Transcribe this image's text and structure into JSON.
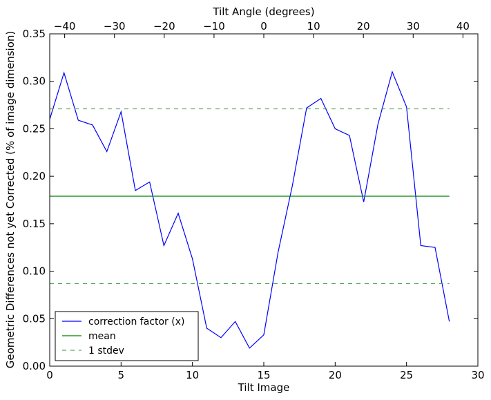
{
  "chart_data": {
    "type": "line",
    "title": "",
    "xlabel": "Tilt Image",
    "ylabel": "Geometric Differences not yet Corrected (% of image dimension)",
    "x2label": "Tilt Angle (degrees)",
    "xlim": [
      0,
      30
    ],
    "ylim": [
      0,
      0.35
    ],
    "x2lim": [
      -43,
      43
    ],
    "x_ticks": [
      0,
      5,
      10,
      15,
      20,
      25,
      30
    ],
    "x_tick_labels": [
      "0",
      "5",
      "10",
      "15",
      "20",
      "25",
      "30"
    ],
    "y_ticks": [
      0,
      0.05,
      0.1,
      0.15,
      0.2,
      0.25,
      0.3,
      0.35
    ],
    "y_tick_labels": [
      "0.00",
      "0.05",
      "0.10",
      "0.15",
      "0.20",
      "0.25",
      "0.30",
      "0.35"
    ],
    "x2_ticks": [
      -40,
      -30,
      -20,
      -10,
      0,
      10,
      20,
      30,
      40
    ],
    "x2_tick_labels": [
      "−40",
      "−30",
      "−20",
      "−10",
      "0",
      "10",
      "20",
      "30",
      "40"
    ],
    "grid": false,
    "legend_position": "lower-left",
    "series": [
      {
        "name": "correction factor (x)",
        "color": "#0000ff",
        "style": "solid",
        "x": [
          0,
          1,
          2,
          3,
          4,
          5,
          6,
          7,
          8,
          9,
          10,
          11,
          12,
          13,
          14,
          15,
          16,
          17,
          18,
          19,
          20,
          21,
          22,
          23,
          24,
          25,
          26,
          27,
          28
        ],
        "y": [
          0.26,
          0.309,
          0.259,
          0.254,
          0.226,
          0.268,
          0.185,
          0.194,
          0.127,
          0.161,
          0.113,
          0.04,
          0.03,
          0.047,
          0.019,
          0.033,
          0.12,
          0.19,
          0.272,
          0.282,
          0.25,
          0.243,
          0.173,
          0.255,
          0.31,
          0.273,
          0.127,
          0.125,
          0.047
        ]
      },
      {
        "name": "mean",
        "color": "#008000",
        "style": "solid",
        "x": [
          0,
          28
        ],
        "y": [
          0.179,
          0.179
        ]
      },
      {
        "name": "1 stdev",
        "color": "#55aa55",
        "style": "dashed",
        "x": [
          0,
          28
        ],
        "y": [
          0.271,
          0.271
        ]
      },
      {
        "name": "",
        "color": "#55aa55",
        "style": "dashed",
        "x": [
          0,
          28
        ],
        "y": [
          0.087,
          0.087
        ]
      }
    ],
    "legend": [
      {
        "label": "correction factor (x)",
        "color": "#0000ff",
        "style": "solid"
      },
      {
        "label": "mean",
        "color": "#008000",
        "style": "solid"
      },
      {
        "label": "1 stdev",
        "color": "#55aa55",
        "style": "dashed"
      }
    ]
  }
}
